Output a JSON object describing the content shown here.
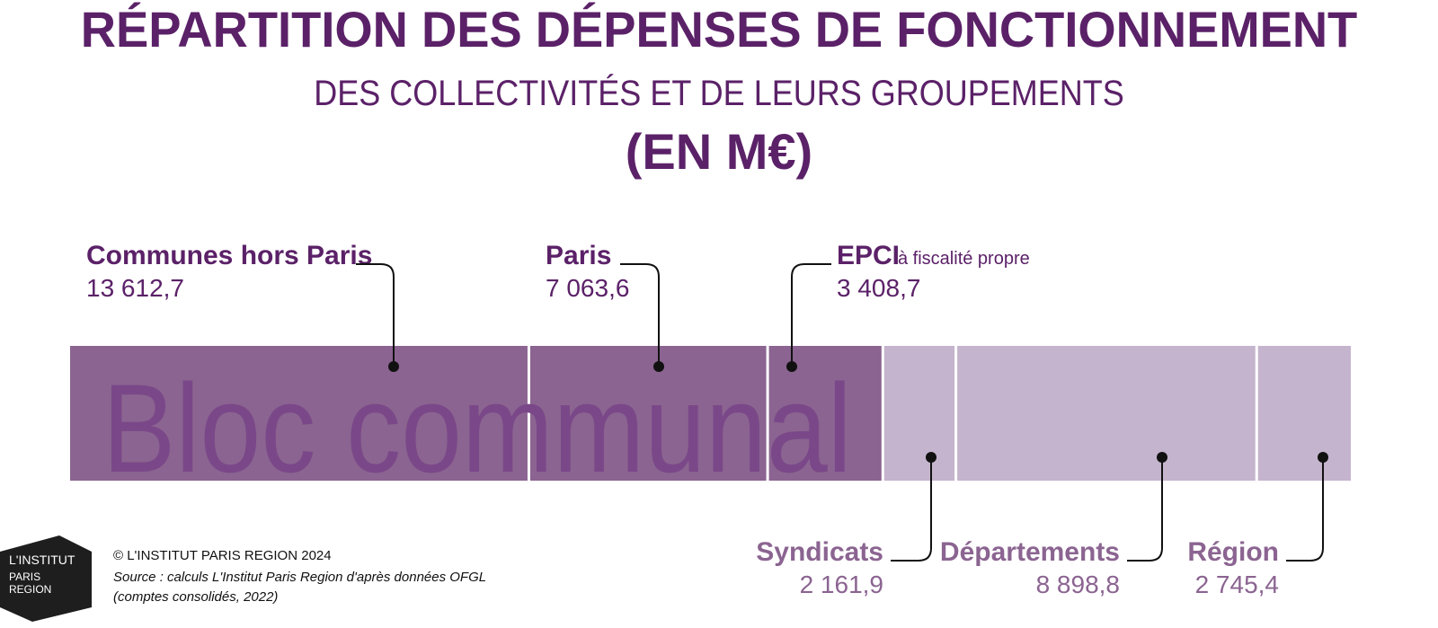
{
  "header": {
    "title": "RÉPARTITION DES DÉPENSES DE FONCTIONNEMENT",
    "subtitle": "DES COLLECTIVITÉS ET DE LEURS GROUPEMENTS",
    "unit": "(EN M€)"
  },
  "chart_data": {
    "type": "bar",
    "orientation": "horizontal-stacked",
    "title": "RÉPARTITION DES DÉPENSES DE FONCTIONNEMENT",
    "subtitle": "DES COLLECTIVITÉS ET DE LEURS GROUPEMENTS",
    "unit": "(EN M€)",
    "group_label": "Bloc communal",
    "categories": [
      "Communes hors Paris",
      "Paris",
      "EPCI",
      "Syndicats",
      "Départements",
      "Région"
    ],
    "values": [
      13612.7,
      7063.6,
      3408.7,
      2161.9,
      8898.8,
      2745.4
    ],
    "value_labels": [
      "13 612,7",
      "7 063,6",
      "3 408,7",
      "2 161,9",
      "8 898,8",
      "2 745,4"
    ],
    "extra_labels": [
      "",
      "",
      "à fiscalité propre",
      "",
      "",
      ""
    ],
    "group_membership": [
      "Bloc communal",
      "Bloc communal",
      "Bloc communal",
      "",
      "",
      ""
    ],
    "label_position": [
      "top",
      "top",
      "top",
      "bottom",
      "bottom",
      "bottom"
    ],
    "colors": {
      "bloc_communal": "#8b6491",
      "others": "#c5b4cd",
      "dark_text": "#5b2168",
      "light_text": "#8b6491",
      "group_text": "#7a4888"
    },
    "grid": false,
    "legend": "none"
  },
  "footer": {
    "logo_lines": [
      "L'INSTITUT",
      "PARIS",
      "REGION"
    ],
    "copyright": "© L'INSTITUT PARIS REGION 2024",
    "source_line1": "Source : calculs L'Institut Paris Region d'après données OFGL",
    "source_line2": "(comptes consolidés, 2022)"
  }
}
